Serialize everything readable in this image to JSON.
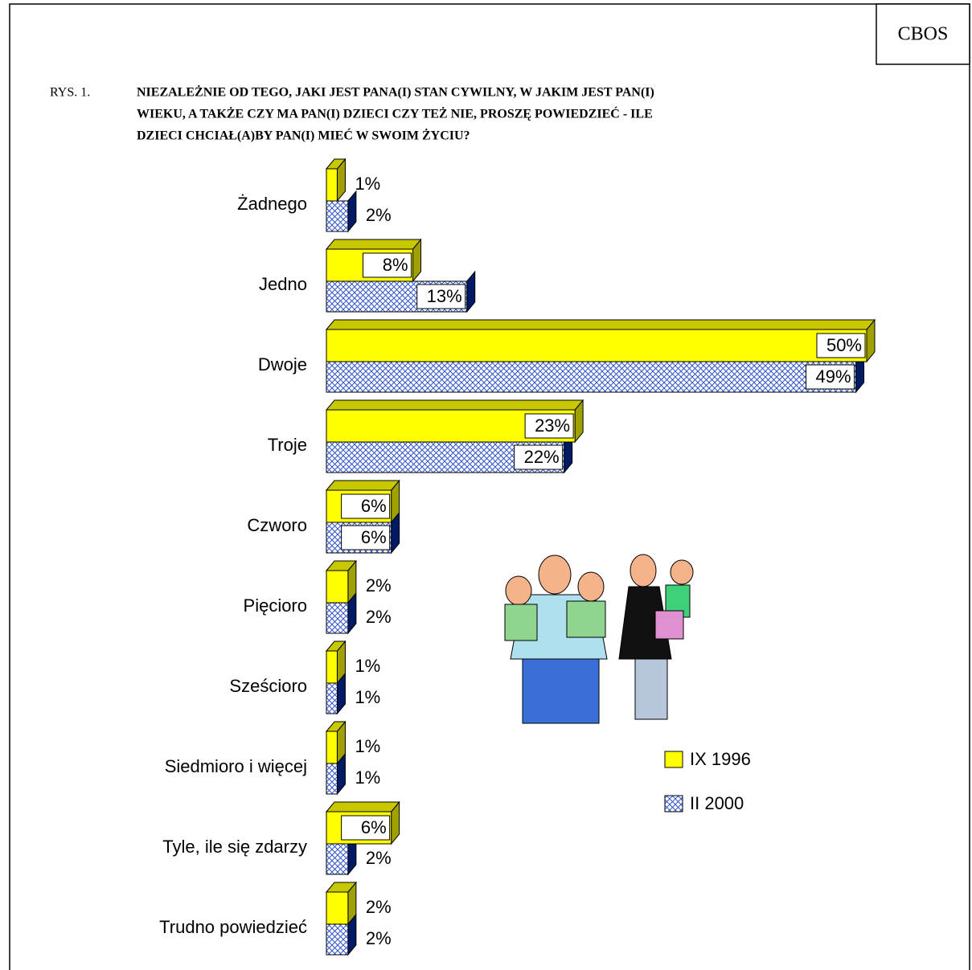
{
  "chart_data": {
    "type": "bar",
    "orientation": "horizontal",
    "source": "CBOS",
    "figure_label": "RYS. 1.",
    "title_lines": [
      "NIEZALEŻNIE OD TEGO, JAKI JEST PANA(I) STAN CYWILNY, W JAKIM JEST PAN(I)",
      "WIEKU, A TAKŻE CZY MA PAN(I) DZIECI CZY TEŻ NIE, PROSZĘ POWIEDZIEĆ - ILE",
      "DZIECI CHCIAŁ(A)BY PAN(I) MIEĆ W SWOIM ŻYCIU?"
    ],
    "categories": [
      "Żadnego",
      "Jedno",
      "Dwoje",
      "Troje",
      "Czworo",
      "Pięcioro",
      "Sześcioro",
      "Siedmioro i więcej",
      "Tyle, ile się zdarzy",
      "Trudno powiedzieć"
    ],
    "series": [
      {
        "name": "IX 1996",
        "color": "#ffff00",
        "values": [
          1,
          8,
          50,
          23,
          6,
          2,
          1,
          1,
          6,
          2
        ],
        "value_labels": [
          "1%",
          "8%",
          "50%",
          "23%",
          "6%",
          "2%",
          "1%",
          "1%",
          "6%",
          "2%"
        ]
      },
      {
        "name": "II 2000",
        "color": "#3355cc",
        "values": [
          2,
          13,
          49,
          22,
          6,
          2,
          1,
          1,
          2,
          2
        ],
        "value_labels": [
          "2%",
          "13%",
          "49%",
          "22%",
          "6%",
          "2%",
          "1%",
          "1%",
          "2%",
          "2%"
        ]
      }
    ]
  }
}
